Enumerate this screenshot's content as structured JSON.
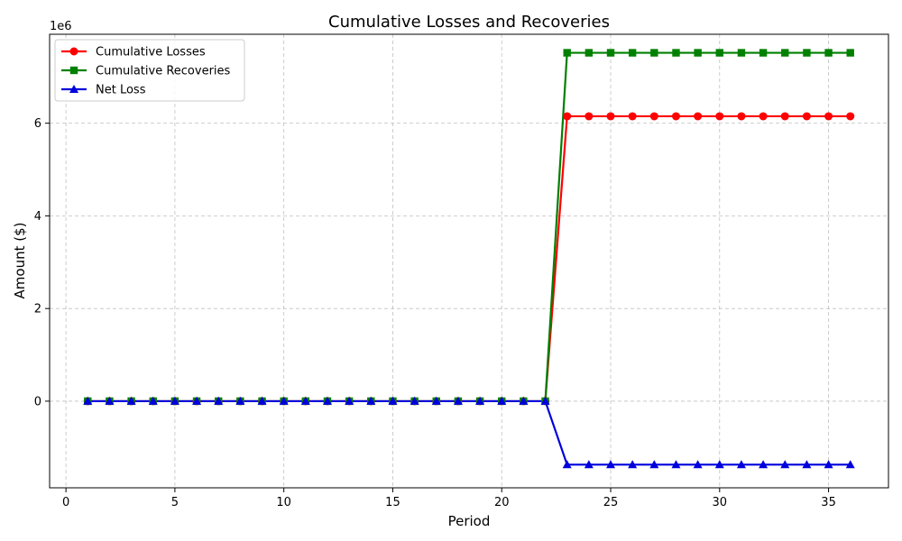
{
  "chart_data": {
    "type": "line",
    "title": "Cumulative Losses and Recoveries",
    "xlabel": "Period",
    "ylabel": "Amount ($)",
    "y_offset_label": "1e6",
    "xlim": [
      -0.75,
      37.75
    ],
    "ylim": [
      -1870000,
      7920000
    ],
    "x_ticks": [
      0,
      5,
      10,
      15,
      20,
      25,
      30,
      35
    ],
    "y_ticks": [
      0,
      2000000,
      4000000,
      6000000
    ],
    "y_tick_labels": [
      "0",
      "2",
      "4",
      "6"
    ],
    "grid": true,
    "legend_position": "top-left",
    "x": [
      1,
      2,
      3,
      4,
      5,
      6,
      7,
      8,
      9,
      10,
      11,
      12,
      13,
      14,
      15,
      16,
      17,
      18,
      19,
      20,
      21,
      22,
      23,
      24,
      25,
      26,
      27,
      28,
      29,
      30,
      31,
      32,
      33,
      34,
      35,
      36
    ],
    "series": [
      {
        "name": "Cumulative Losses",
        "color": "#ff0000",
        "marker": "circle",
        "values": [
          0,
          0,
          0,
          0,
          0,
          0,
          0,
          0,
          0,
          0,
          0,
          0,
          0,
          0,
          0,
          0,
          0,
          0,
          0,
          0,
          0,
          0,
          6150000,
          6150000,
          6150000,
          6150000,
          6150000,
          6150000,
          6150000,
          6150000,
          6150000,
          6150000,
          6150000,
          6150000,
          6150000,
          6150000
        ]
      },
      {
        "name": "Cumulative Recoveries",
        "color": "#008000",
        "marker": "square",
        "values": [
          0,
          0,
          0,
          0,
          0,
          0,
          0,
          0,
          0,
          0,
          0,
          0,
          0,
          0,
          0,
          0,
          0,
          0,
          0,
          0,
          0,
          0,
          7520000,
          7520000,
          7520000,
          7520000,
          7520000,
          7520000,
          7520000,
          7520000,
          7520000,
          7520000,
          7520000,
          7520000,
          7520000,
          7520000
        ]
      },
      {
        "name": "Net Loss",
        "color": "#0000dd",
        "marker": "triangle",
        "values": [
          0,
          0,
          0,
          0,
          0,
          0,
          0,
          0,
          0,
          0,
          0,
          0,
          0,
          0,
          0,
          0,
          0,
          0,
          0,
          0,
          0,
          0,
          -1370000,
          -1370000,
          -1370000,
          -1370000,
          -1370000,
          -1370000,
          -1370000,
          -1370000,
          -1370000,
          -1370000,
          -1370000,
          -1370000,
          -1370000,
          -1370000
        ]
      }
    ]
  }
}
